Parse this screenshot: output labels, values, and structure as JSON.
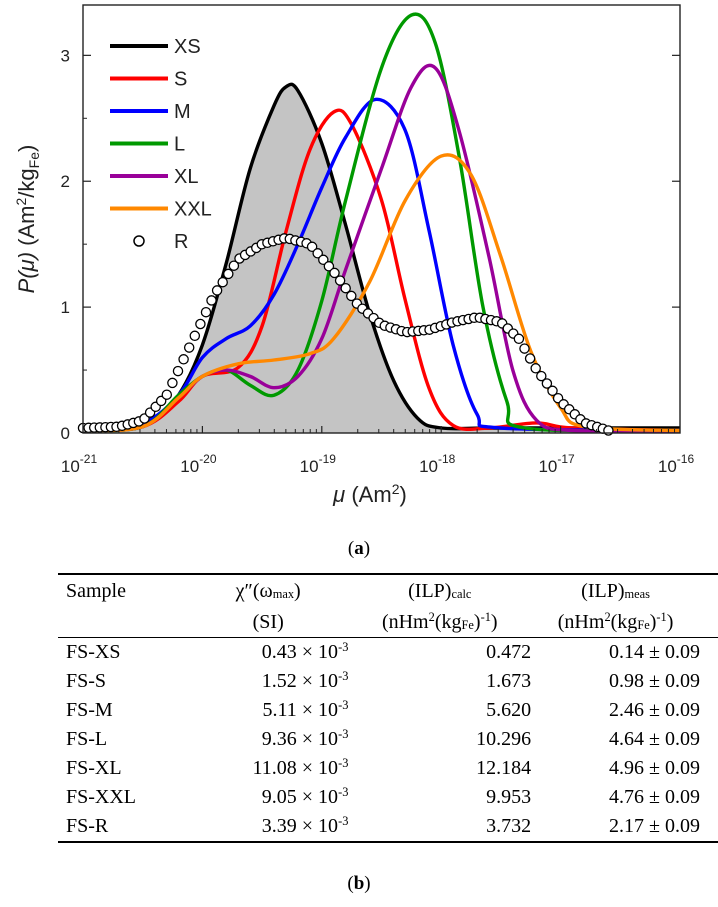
{
  "chart_data": {
    "type": "line",
    "xscale": "log",
    "xlim": [
      1e-21,
      1e-16
    ],
    "ylim": [
      0,
      3.4
    ],
    "xticks": [
      {
        "base": "10",
        "exp": "-21"
      },
      {
        "base": "10",
        "exp": "-20"
      },
      {
        "base": "10",
        "exp": "-19"
      },
      {
        "base": "10",
        "exp": "-18"
      },
      {
        "base": "10",
        "exp": "-17"
      },
      {
        "base": "10",
        "exp": "-16"
      }
    ],
    "yticks": [
      "0",
      "1",
      "2",
      "3"
    ],
    "xlabel": {
      "symbol": "μ",
      "text": " (Am",
      "sup": "2",
      "close": ")"
    },
    "ylabel": {
      "symbol": "P(μ)",
      "text": " (Am",
      "sup": "2",
      "mid": "/kg",
      "sub": "Fe",
      "close": ")"
    },
    "series": [
      {
        "name": "XS",
        "color": "#000000",
        "marker": "line",
        "filled": true,
        "points": [
          [
            -21,
            0.04
          ],
          [
            -20.8,
            0.04
          ],
          [
            -20.6,
            0.05
          ],
          [
            -20.4,
            0.12
          ],
          [
            -20.2,
            0.3
          ],
          [
            -20,
            0.7
          ],
          [
            -19.8,
            1.35
          ],
          [
            -19.6,
            2.1
          ],
          [
            -19.4,
            2.6
          ],
          [
            -19.3,
            2.75
          ],
          [
            -19.2,
            2.72
          ],
          [
            -19,
            2.3
          ],
          [
            -18.8,
            1.65
          ],
          [
            -18.6,
            0.95
          ],
          [
            -18.4,
            0.42
          ],
          [
            -18.2,
            0.12
          ],
          [
            -18,
            0.04
          ],
          [
            -17.5,
            0.04
          ],
          [
            -16,
            0.04
          ]
        ]
      },
      {
        "name": "S",
        "color": "#ff0000",
        "marker": "line",
        "points": [
          [
            -21,
            0.02
          ],
          [
            -20.5,
            0.05
          ],
          [
            -20.2,
            0.25
          ],
          [
            -20,
            0.45
          ],
          [
            -19.7,
            0.52
          ],
          [
            -19.5,
            0.85
          ],
          [
            -19.3,
            1.6
          ],
          [
            -19.1,
            2.25
          ],
          [
            -18.9,
            2.55
          ],
          [
            -18.75,
            2.45
          ],
          [
            -18.5,
            1.85
          ],
          [
            -18.3,
            1.05
          ],
          [
            -18.1,
            0.35
          ],
          [
            -17.9,
            0.06
          ],
          [
            -17.6,
            0.04
          ],
          [
            -17.2,
            0.08
          ],
          [
            -16.9,
            0.04
          ],
          [
            -16,
            0.02
          ]
        ]
      },
      {
        "name": "M",
        "color": "#0000ff",
        "marker": "line",
        "points": [
          [
            -21,
            0.02
          ],
          [
            -20.5,
            0.08
          ],
          [
            -20.2,
            0.3
          ],
          [
            -20,
            0.6
          ],
          [
            -19.8,
            0.75
          ],
          [
            -19.6,
            0.85
          ],
          [
            -19.4,
            1.1
          ],
          [
            -19.2,
            1.5
          ],
          [
            -19,
            1.95
          ],
          [
            -18.8,
            2.35
          ],
          [
            -18.55,
            2.65
          ],
          [
            -18.3,
            2.4
          ],
          [
            -18.1,
            1.6
          ],
          [
            -17.9,
            0.7
          ],
          [
            -17.7,
            0.15
          ],
          [
            -17.5,
            0.04
          ],
          [
            -16,
            0.02
          ]
        ]
      },
      {
        "name": "L",
        "color": "#009900",
        "marker": "line",
        "points": [
          [
            -21,
            0.02
          ],
          [
            -20.5,
            0.05
          ],
          [
            -20.2,
            0.3
          ],
          [
            -20,
            0.45
          ],
          [
            -19.8,
            0.5
          ],
          [
            -19.6,
            0.38
          ],
          [
            -19.4,
            0.3
          ],
          [
            -19.2,
            0.5
          ],
          [
            -19,
            1.05
          ],
          [
            -18.8,
            1.85
          ],
          [
            -18.5,
            2.9
          ],
          [
            -18.25,
            3.32
          ],
          [
            -18.05,
            3.1
          ],
          [
            -17.85,
            2.2
          ],
          [
            -17.65,
            1.0
          ],
          [
            -17.45,
            0.25
          ],
          [
            -17.3,
            0.04
          ],
          [
            -16,
            0.02
          ]
        ]
      },
      {
        "name": "XL",
        "color": "#990099",
        "marker": "line",
        "points": [
          [
            -21,
            0.02
          ],
          [
            -20.5,
            0.05
          ],
          [
            -20.2,
            0.28
          ],
          [
            -20,
            0.45
          ],
          [
            -19.8,
            0.5
          ],
          [
            -19.6,
            0.45
          ],
          [
            -19.4,
            0.36
          ],
          [
            -19.2,
            0.45
          ],
          [
            -19,
            0.75
          ],
          [
            -18.8,
            1.3
          ],
          [
            -18.5,
            2.1
          ],
          [
            -18.25,
            2.75
          ],
          [
            -18.05,
            2.9
          ],
          [
            -17.85,
            2.4
          ],
          [
            -17.6,
            1.4
          ],
          [
            -17.4,
            0.5
          ],
          [
            -17.2,
            0.1
          ],
          [
            -16.9,
            0.02
          ],
          [
            -16,
            0.02
          ]
        ]
      },
      {
        "name": "XXL",
        "color": "#ff8800",
        "marker": "line",
        "points": [
          [
            -21,
            0.02
          ],
          [
            -20.5,
            0.05
          ],
          [
            -20.2,
            0.28
          ],
          [
            -20,
            0.45
          ],
          [
            -19.7,
            0.55
          ],
          [
            -19.4,
            0.58
          ],
          [
            -19.1,
            0.63
          ],
          [
            -18.9,
            0.75
          ],
          [
            -18.6,
            1.2
          ],
          [
            -18.3,
            1.85
          ],
          [
            -18,
            2.2
          ],
          [
            -17.75,
            2.05
          ],
          [
            -17.5,
            1.4
          ],
          [
            -17.25,
            0.65
          ],
          [
            -17,
            0.2
          ],
          [
            -16.8,
            0.05
          ],
          [
            -16,
            0.02
          ]
        ]
      },
      {
        "name": "R",
        "color": "#000000",
        "marker": "circle",
        "points": [
          [
            -21,
            0.04
          ],
          [
            -20.7,
            0.05
          ],
          [
            -20.5,
            0.1
          ],
          [
            -20.3,
            0.3
          ],
          [
            -20.1,
            0.7
          ],
          [
            -19.9,
            1.1
          ],
          [
            -19.7,
            1.38
          ],
          [
            -19.5,
            1.5
          ],
          [
            -19.3,
            1.55
          ],
          [
            -19.1,
            1.5
          ],
          [
            -18.9,
            1.28
          ],
          [
            -18.7,
            1.02
          ],
          [
            -18.5,
            0.86
          ],
          [
            -18.3,
            0.8
          ],
          [
            -18.1,
            0.82
          ],
          [
            -17.9,
            0.88
          ],
          [
            -17.7,
            0.92
          ],
          [
            -17.5,
            0.88
          ],
          [
            -17.35,
            0.75
          ],
          [
            -17.2,
            0.5
          ],
          [
            -17.0,
            0.25
          ],
          [
            -16.8,
            0.08
          ],
          [
            -16.6,
            0.02
          ]
        ]
      }
    ]
  },
  "captions": {
    "a": "a",
    "b": "b"
  },
  "table": {
    "headers": {
      "sample": "Sample",
      "chi_main": "χ″(ω",
      "chi_sub": "max",
      "chi_close": ")",
      "chi_unit": "(SI)",
      "calc_main": "(ILP)",
      "calc_sub": "calc",
      "calc_unit": {
        "a": "(nHm",
        "sup1": "2",
        "b": "(kg",
        "sub": "Fe",
        "c": ")",
        "sup2": "-1",
        "d": ")"
      },
      "meas_main": "(ILP)",
      "meas_sub": "meas",
      "meas_unit": {
        "a": "(nHm",
        "sup1": "2",
        "b": "(kg",
        "sub": "Fe",
        "c": ")",
        "sup2": "-1",
        "d": ")"
      }
    },
    "rows": [
      {
        "sample": "FS-XS",
        "chi": "0.43 × 10",
        "chi_exp": "-3",
        "calc": "0.472",
        "meas": "0.14 ± 0.09"
      },
      {
        "sample": "FS-S",
        "chi": "1.52 × 10",
        "chi_exp": "-3",
        "calc": "1.673",
        "meas": "0.98 ± 0.09"
      },
      {
        "sample": "FS-M",
        "chi": "5.11 × 10",
        "chi_exp": "-3",
        "calc": "5.620",
        "meas": "2.46 ± 0.09"
      },
      {
        "sample": "FS-L",
        "chi": "9.36 × 10",
        "chi_exp": "-3",
        "calc": "10.296",
        "meas": "4.64 ± 0.09"
      },
      {
        "sample": "FS-XL",
        "chi": "11.08 × 10",
        "chi_exp": "-3",
        "calc": "12.184",
        "meas": "4.96 ± 0.09"
      },
      {
        "sample": "FS-XXL",
        "chi": "9.05 × 10",
        "chi_exp": "-3",
        "calc": "9.953",
        "meas": "4.76 ± 0.09"
      },
      {
        "sample": "FS-R",
        "chi": "3.39 × 10",
        "chi_exp": "-3",
        "calc": "3.732",
        "meas": "2.17 ± 0.09"
      }
    ]
  }
}
